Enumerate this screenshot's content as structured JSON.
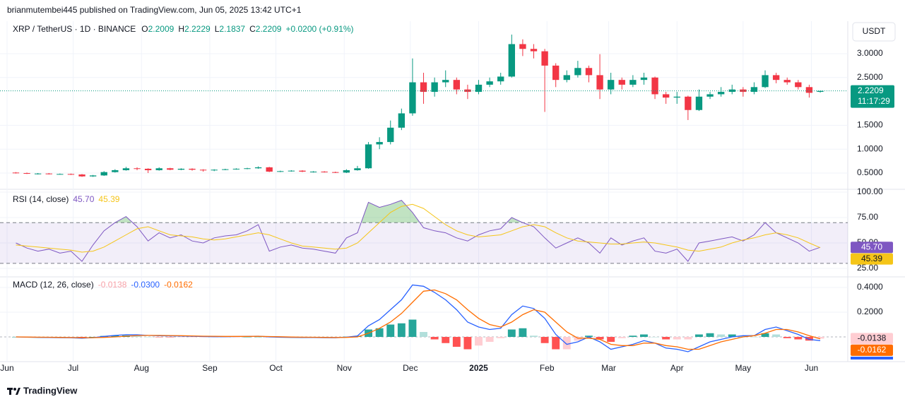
{
  "header": {
    "publisher": "brianmutembei445 published on TradingView.com, Jun 05, 2025 13:42 UTC+1",
    "symbol": "XRP / TetherUS · 1D · BINANCE",
    "ohlc_labels": [
      "O",
      "H",
      "L",
      "C"
    ],
    "change": "+0.0200 (+0.91%)",
    "currency": "USDT",
    "countdown": "11:17:29"
  },
  "footer": {
    "brand": "TradingView"
  },
  "chart_data": [
    {
      "type": "candlestick",
      "up_color": "#089981",
      "down_color": "#f23645",
      "ohlc": [
        [
          0.51,
          0.52,
          0.49,
          0.5
        ],
        [
          0.5,
          0.51,
          0.48,
          0.49
        ],
        [
          0.49,
          0.5,
          0.47,
          0.49
        ],
        [
          0.49,
          0.5,
          0.47,
          0.48
        ],
        [
          0.48,
          0.49,
          0.47,
          0.48
        ],
        [
          0.48,
          0.49,
          0.46,
          0.47
        ],
        [
          0.47,
          0.48,
          0.42,
          0.43
        ],
        [
          0.43,
          0.46,
          0.42,
          0.45
        ],
        [
          0.45,
          0.54,
          0.44,
          0.52
        ],
        [
          0.52,
          0.58,
          0.51,
          0.56
        ],
        [
          0.56,
          0.63,
          0.55,
          0.6
        ],
        [
          0.6,
          0.62,
          0.56,
          0.59
        ],
        [
          0.59,
          0.6,
          0.5,
          0.56
        ],
        [
          0.56,
          0.62,
          0.55,
          0.6
        ],
        [
          0.6,
          0.61,
          0.56,
          0.57
        ],
        [
          0.57,
          0.6,
          0.56,
          0.59
        ],
        [
          0.59,
          0.6,
          0.55,
          0.57
        ],
        [
          0.57,
          0.58,
          0.53,
          0.56
        ],
        [
          0.56,
          0.58,
          0.54,
          0.57
        ],
        [
          0.57,
          0.59,
          0.56,
          0.58
        ],
        [
          0.58,
          0.6,
          0.57,
          0.59
        ],
        [
          0.59,
          0.61,
          0.58,
          0.6
        ],
        [
          0.6,
          0.64,
          0.59,
          0.62
        ],
        [
          0.62,
          0.63,
          0.52,
          0.53
        ],
        [
          0.53,
          0.55,
          0.52,
          0.54
        ],
        [
          0.54,
          0.56,
          0.53,
          0.55
        ],
        [
          0.55,
          0.56,
          0.52,
          0.53
        ],
        [
          0.53,
          0.54,
          0.51,
          0.53
        ],
        [
          0.53,
          0.54,
          0.51,
          0.52
        ],
        [
          0.52,
          0.53,
          0.5,
          0.51
        ],
        [
          0.51,
          0.58,
          0.5,
          0.56
        ],
        [
          0.56,
          0.65,
          0.55,
          0.6
        ],
        [
          0.6,
          1.15,
          0.59,
          1.1
        ],
        [
          1.1,
          1.25,
          1.0,
          1.15
        ],
        [
          1.15,
          1.6,
          1.1,
          1.45
        ],
        [
          1.45,
          1.85,
          1.4,
          1.75
        ],
        [
          1.75,
          2.9,
          1.7,
          2.4
        ],
        [
          2.4,
          2.6,
          1.95,
          2.2
        ],
        [
          2.2,
          2.5,
          2.1,
          2.4
        ],
        [
          2.4,
          2.65,
          2.3,
          2.45
        ],
        [
          2.45,
          2.5,
          2.15,
          2.25
        ],
        [
          2.25,
          2.35,
          2.05,
          2.2
        ],
        [
          2.2,
          2.45,
          2.15,
          2.35
        ],
        [
          2.35,
          2.5,
          2.3,
          2.42
        ],
        [
          2.42,
          2.6,
          2.35,
          2.52
        ],
        [
          2.52,
          3.4,
          2.5,
          3.2
        ],
        [
          3.2,
          3.3,
          2.95,
          3.1
        ],
        [
          3.1,
          3.2,
          2.9,
          3.05
        ],
        [
          3.05,
          3.1,
          1.78,
          2.75
        ],
        [
          2.75,
          2.8,
          2.3,
          2.45
        ],
        [
          2.45,
          2.65,
          2.4,
          2.55
        ],
        [
          2.55,
          2.85,
          2.5,
          2.7
        ],
        [
          2.7,
          2.75,
          2.4,
          2.55
        ],
        [
          2.55,
          2.99,
          2.05,
          2.25
        ],
        [
          2.25,
          2.6,
          2.15,
          2.45
        ],
        [
          2.45,
          2.5,
          2.25,
          2.35
        ],
        [
          2.35,
          2.55,
          2.3,
          2.45
        ],
        [
          2.45,
          2.6,
          2.35,
          2.5
        ],
        [
          2.5,
          2.52,
          2.05,
          2.15
        ],
        [
          2.15,
          2.2,
          1.95,
          2.08
        ],
        [
          2.08,
          2.2,
          1.95,
          2.1
        ],
        [
          2.1,
          2.12,
          1.61,
          1.82
        ],
        [
          1.82,
          2.25,
          1.8,
          2.1
        ],
        [
          2.1,
          2.2,
          2.05,
          2.15
        ],
        [
          2.15,
          2.3,
          2.1,
          2.2
        ],
        [
          2.2,
          2.35,
          2.15,
          2.25
        ],
        [
          2.25,
          2.3,
          2.1,
          2.2
        ],
        [
          2.2,
          2.4,
          2.15,
          2.3
        ],
        [
          2.3,
          2.65,
          2.28,
          2.55
        ],
        [
          2.55,
          2.6,
          2.38,
          2.45
        ],
        [
          2.45,
          2.5,
          2.35,
          2.4
        ],
        [
          2.4,
          2.45,
          2.25,
          2.3
        ],
        [
          2.3,
          2.35,
          2.08,
          2.18
        ],
        [
          2.2009,
          2.2229,
          2.1837,
          2.2209
        ]
      ],
      "xlim": [
        -1.44,
        75.5
      ],
      "xticks": [
        {
          "value": -0.8,
          "label": "Jun"
        },
        {
          "value": 5.2,
          "label": "Jul"
        },
        {
          "value": 11.4,
          "label": "Aug"
        },
        {
          "value": 17.6,
          "label": "Sep"
        },
        {
          "value": 23.6,
          "label": "Oct"
        },
        {
          "value": 29.8,
          "label": "Nov"
        },
        {
          "value": 35.8,
          "label": "Dec"
        },
        {
          "value": 42,
          "label": "2025"
        },
        {
          "value": 48.2,
          "label": "Feb"
        },
        {
          "value": 53.8,
          "label": "Mar"
        },
        {
          "value": 60,
          "label": "Apr"
        },
        {
          "value": 66,
          "label": "May"
        },
        {
          "value": 72.2,
          "label": "Jun"
        }
      ],
      "ylim": [
        0.16,
        3.68
      ],
      "yticks": [
        {
          "value": 0.5,
          "label": "0.5000"
        },
        {
          "value": 1,
          "label": "1.0000"
        },
        {
          "value": 1.5,
          "label": "1.5000"
        },
        {
          "value": 2.5,
          "label": "2.5000"
        },
        {
          "value": 3,
          "label": "3.0000"
        }
      ]
    },
    {
      "type": "rsi",
      "title": "RSI (14, close)",
      "ylim": [
        16.7,
        102.8
      ],
      "yticks": [
        {
          "value": 100,
          "label": "100.00"
        },
        {
          "value": 75,
          "label": "75.00"
        },
        {
          "value": 50,
          "label": "50.00"
        },
        {
          "value": 25,
          "label": "25.00"
        }
      ],
      "band": [
        30,
        70
      ],
      "band_color": "#7e57c2",
      "overbought_color": "#4caf50",
      "series": [
        {
          "color": "#7e57c2",
          "last_label": "45.70",
          "values": [
            50,
            45,
            42,
            44,
            40,
            42,
            32,
            48,
            62,
            70,
            76,
            66,
            52,
            60,
            55,
            58,
            52,
            50,
            55,
            57,
            58,
            62,
            68,
            42,
            46,
            48,
            45,
            44,
            42,
            40,
            55,
            60,
            90,
            85,
            88,
            92,
            80,
            65,
            62,
            60,
            55,
            52,
            58,
            62,
            64,
            75,
            70,
            66,
            55,
            45,
            50,
            55,
            50,
            40,
            55,
            48,
            52,
            55,
            42,
            40,
            44,
            32,
            50,
            52,
            54,
            56,
            52,
            58,
            70,
            60,
            55,
            50,
            42,
            45.7
          ]
        },
        {
          "color": "#f5c518",
          "last_label": "45.39",
          "values": [
            48,
            47,
            46,
            45,
            44,
            43,
            41,
            42,
            46,
            52,
            58,
            64,
            66,
            62,
            58,
            57,
            56,
            54,
            53,
            54,
            56,
            58,
            60,
            58,
            54,
            50,
            47,
            46,
            45,
            44,
            45,
            50,
            60,
            70,
            80,
            86,
            88,
            84,
            76,
            68,
            62,
            58,
            56,
            57,
            58,
            62,
            66,
            68,
            66,
            60,
            55,
            52,
            51,
            50,
            49,
            49,
            50,
            51,
            50,
            48,
            46,
            43,
            42,
            44,
            46,
            50,
            53,
            55,
            58,
            60,
            58,
            55,
            50,
            45.39
          ]
        }
      ]
    },
    {
      "type": "macd",
      "title": "MACD (12, 26, close)",
      "ylim": [
        -0.2,
        0.486
      ],
      "yticks": [
        {
          "value": 0.4,
          "label": "0.4000"
        },
        {
          "value": 0.2,
          "label": "0.2000"
        }
      ],
      "histogram": {
        "colors": [
          "#26a69a",
          "#b2dfdb",
          "#ffcdd2",
          "#ff5252"
        ],
        "legend_color": "#f7a1a8",
        "last_label": "-0.0138",
        "values": [
          0,
          -0.001,
          -0.002,
          -0.002,
          -0.002,
          -0.002,
          -0.004,
          0,
          0.008,
          0.012,
          0.012,
          0.006,
          0,
          -0.002,
          -0.003,
          -0.003,
          -0.003,
          -0.003,
          -0.003,
          -0.002,
          -0.001,
          0,
          0.001,
          -0.003,
          -0.004,
          -0.003,
          -0.003,
          -0.002,
          -0.002,
          -0.002,
          0.002,
          0.008,
          0.06,
          0.07,
          0.1,
          0.11,
          0.14,
          0.04,
          -0.02,
          -0.05,
          -0.08,
          -0.1,
          -0.07,
          -0.04,
          -0.01,
          0.06,
          0.07,
          0.01,
          -0.05,
          -0.1,
          -0.1,
          -0.03,
          0.01,
          -0.02,
          -0.04,
          -0.01,
          0.01,
          0.02,
          0,
          -0.02,
          -0.02,
          -0.02,
          0.02,
          0.03,
          0.02,
          0.02,
          0.01,
          0,
          0.03,
          0.02,
          -0.01,
          -0.02,
          -0.03,
          -0.0138
        ]
      },
      "series": [
        {
          "color": "#2962ff",
          "last_label": "-0.0300",
          "values": [
            0,
            -0.002,
            -0.004,
            -0.005,
            -0.006,
            -0.007,
            -0.01,
            -0.006,
            0.004,
            0.012,
            0.018,
            0.017,
            0.012,
            0.01,
            0.008,
            0.007,
            0.005,
            0.003,
            0.002,
            0.002,
            0.003,
            0.004,
            0.006,
            0,
            -0.003,
            -0.004,
            -0.005,
            -0.005,
            -0.006,
            -0.007,
            -0.002,
            0.008,
            0.09,
            0.14,
            0.22,
            0.3,
            0.42,
            0.41,
            0.36,
            0.3,
            0.22,
            0.12,
            0.08,
            0.06,
            0.07,
            0.18,
            0.25,
            0.23,
            0.15,
            0.02,
            -0.06,
            -0.04,
            0,
            -0.04,
            -0.1,
            -0.08,
            -0.06,
            -0.03,
            -0.05,
            -0.09,
            -0.1,
            -0.12,
            -0.08,
            -0.04,
            -0.02,
            0,
            0.01,
            0.01,
            0.06,
            0.08,
            0.05,
            0.02,
            -0.02,
            -0.03
          ]
        },
        {
          "color": "#ff6d00",
          "last_label": "-0.0162",
          "values": [
            0,
            -0.001,
            -0.002,
            -0.003,
            -0.004,
            -0.005,
            -0.006,
            -0.006,
            -0.004,
            0,
            0.006,
            0.011,
            0.012,
            0.012,
            0.011,
            0.01,
            0.008,
            0.006,
            0.005,
            0.004,
            0.004,
            0.004,
            0.005,
            0.003,
            0.001,
            -0.001,
            -0.002,
            -0.003,
            -0.004,
            -0.005,
            -0.004,
            0,
            0.03,
            0.07,
            0.12,
            0.19,
            0.28,
            0.37,
            0.38,
            0.35,
            0.3,
            0.22,
            0.15,
            0.1,
            0.08,
            0.12,
            0.18,
            0.22,
            0.2,
            0.12,
            0.04,
            -0.01,
            -0.01,
            -0.02,
            -0.06,
            -0.07,
            -0.07,
            -0.05,
            -0.05,
            -0.07,
            -0.08,
            -0.1,
            -0.1,
            -0.07,
            -0.04,
            -0.02,
            0,
            0.01,
            0.03,
            0.06,
            0.06,
            0.04,
            0.01,
            -0.0162
          ]
        }
      ]
    }
  ]
}
